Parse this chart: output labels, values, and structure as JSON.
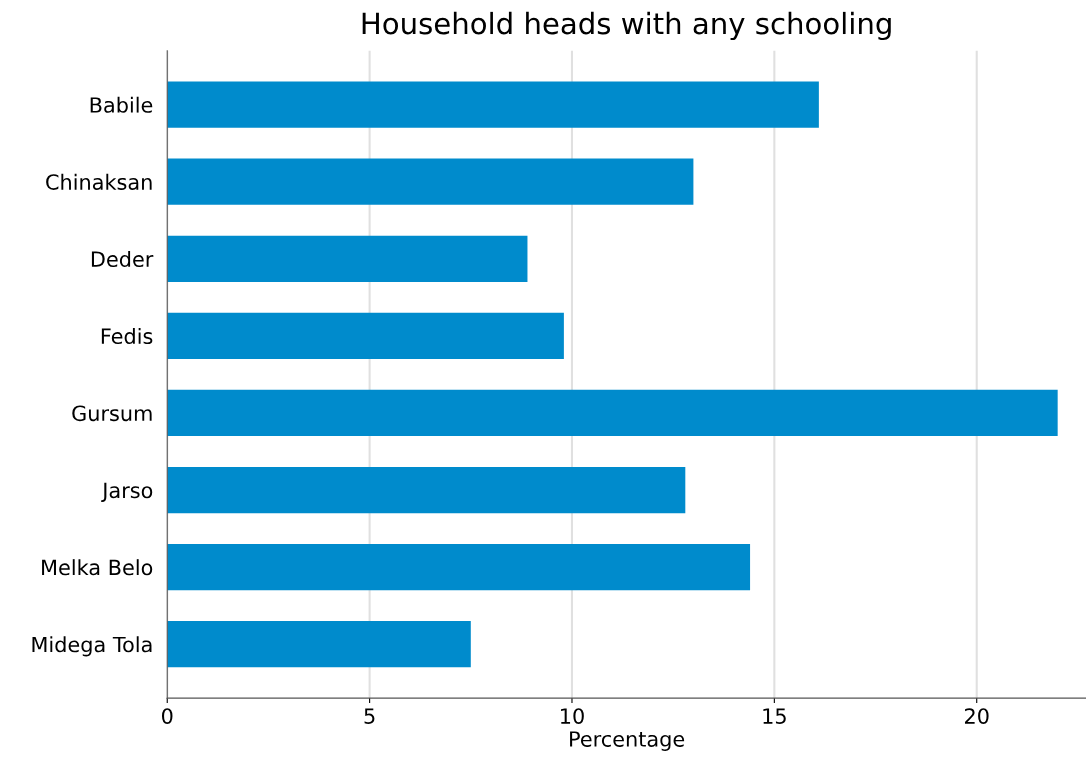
{
  "chart_data": {
    "type": "bar",
    "orientation": "horizontal",
    "title": "Household heads with any schooling",
    "xlabel": "Percentage",
    "categories": [
      "Babile",
      "Chinaksan",
      "Deder",
      "Fedis",
      "Gursum",
      "Jarso",
      "Melka Belo",
      "Midega Tola"
    ],
    "values": [
      16.1,
      13.0,
      8.9,
      9.8,
      22.0,
      12.8,
      14.4,
      7.5
    ],
    "color": "#008bcc",
    "xlim": [
      0,
      22.7
    ],
    "xticks": [
      0,
      5,
      10,
      15,
      20
    ],
    "grid": "x",
    "legend": false
  }
}
